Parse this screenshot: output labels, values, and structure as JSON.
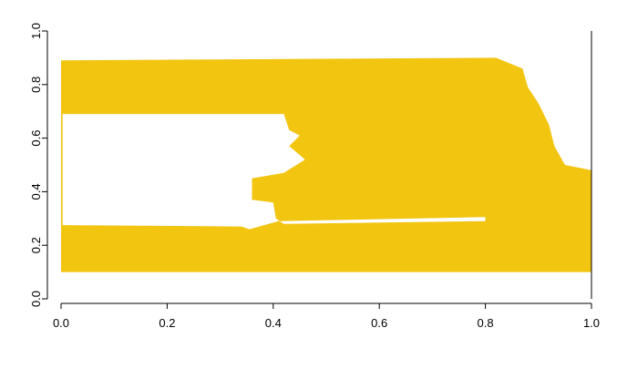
{
  "chart_data": {
    "type": "area",
    "title": "",
    "xlabel": "",
    "ylabel": "",
    "xlim": [
      0.0,
      1.0
    ],
    "ylim": [
      0.0,
      1.0
    ],
    "x_ticks": [
      "0.0",
      "0.2",
      "0.4",
      "0.6",
      "0.8",
      "1.0"
    ],
    "y_ticks": [
      "0.0",
      "0.2",
      "0.4",
      "0.6",
      "0.8",
      "1.0"
    ],
    "grid": false,
    "legend": "none",
    "fill_color": "#F2C511",
    "regions": [
      {
        "role": "filled",
        "outline": [
          [
            0.0,
            0.1
          ],
          [
            1.0,
            0.1
          ],
          [
            1.0,
            0.48
          ],
          [
            0.95,
            0.5
          ],
          [
            0.93,
            0.57
          ],
          [
            0.92,
            0.65
          ],
          [
            0.9,
            0.73
          ],
          [
            0.88,
            0.79
          ],
          [
            0.87,
            0.86
          ],
          [
            0.82,
            0.9
          ],
          [
            0.0,
            0.89
          ]
        ]
      },
      {
        "role": "gap",
        "outline": [
          [
            0.0,
            0.275
          ],
          [
            0.34,
            0.27
          ],
          [
            0.355,
            0.26
          ],
          [
            0.41,
            0.29
          ],
          [
            0.8,
            0.305
          ],
          [
            0.8,
            0.29
          ],
          [
            0.42,
            0.28
          ],
          [
            0.405,
            0.3
          ],
          [
            0.4,
            0.36
          ],
          [
            0.36,
            0.37
          ],
          [
            0.36,
            0.45
          ],
          [
            0.42,
            0.47
          ],
          [
            0.46,
            0.52
          ],
          [
            0.43,
            0.57
          ],
          [
            0.45,
            0.61
          ],
          [
            0.43,
            0.63
          ],
          [
            0.42,
            0.69
          ],
          [
            0.0,
            0.69
          ]
        ]
      },
      {
        "role": "filled",
        "outline": [
          [
            0.0,
            0.69
          ],
          [
            0.003,
            0.69
          ],
          [
            0.003,
            0.27
          ],
          [
            0.0,
            0.27
          ]
        ]
      }
    ]
  }
}
